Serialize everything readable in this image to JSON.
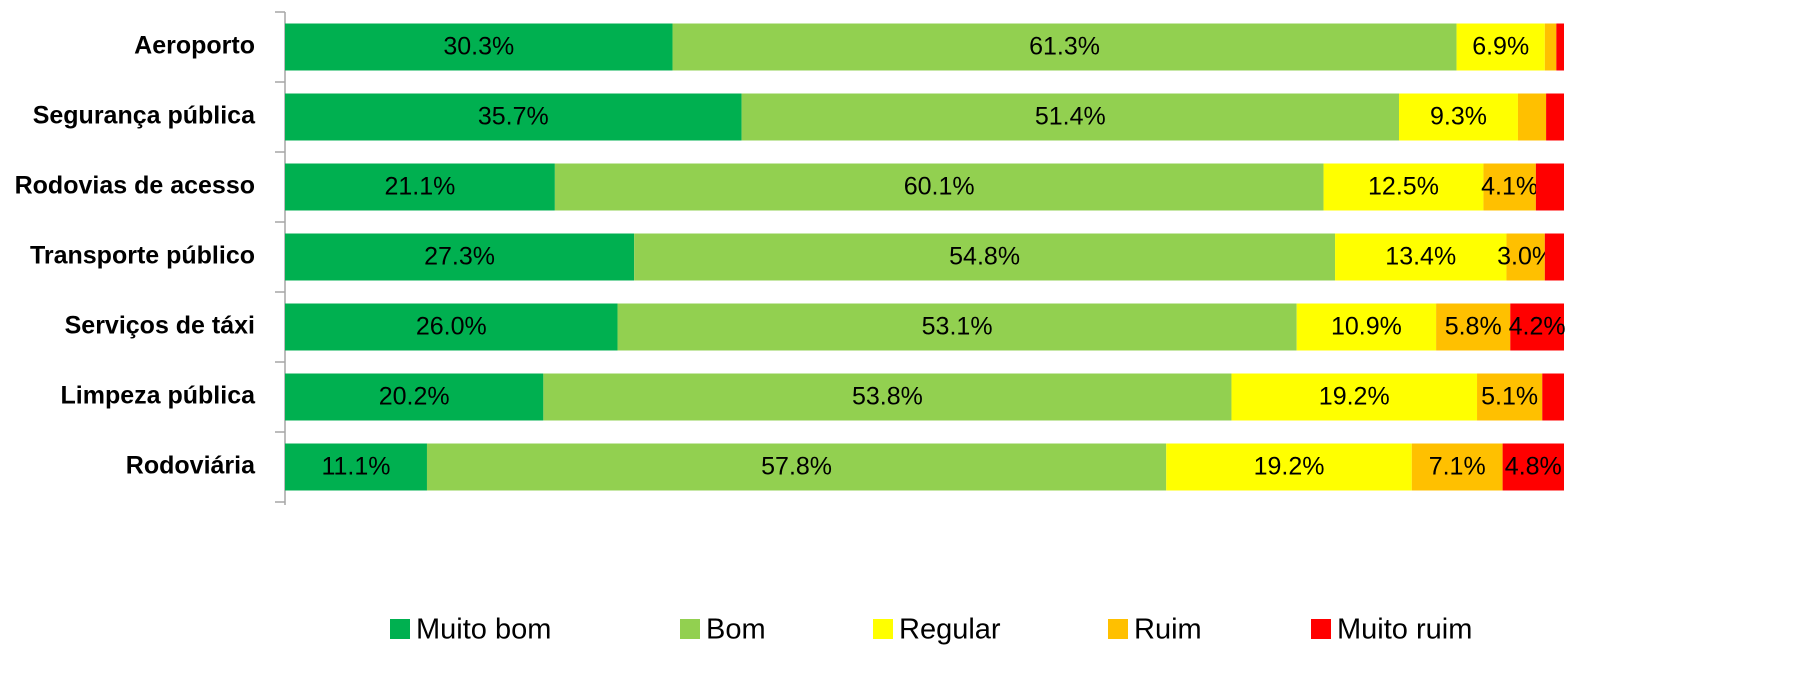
{
  "chart_data": {
    "type": "stacked-bar-horizontal",
    "categories": [
      "Aeroporto",
      "Segurança pública",
      "Rodovias de acesso",
      "Transporte público",
      "Serviços de táxi",
      "Limpeza pública",
      "Rodoviária"
    ],
    "xlim": [
      0,
      100
    ],
    "series": [
      {
        "name": "Muito bom",
        "color": "#00b050",
        "values": [
          30.3,
          35.7,
          21.1,
          27.3,
          26.0,
          20.2,
          11.1
        ],
        "value_labels": [
          "30.3%",
          "35.7%",
          "21.1%",
          "27.3%",
          "26.0%",
          "20.2%",
          "11.1%"
        ]
      },
      {
        "name": "Bom",
        "color": "#92d050",
        "values": [
          61.3,
          51.4,
          60.1,
          54.8,
          53.1,
          53.8,
          57.8
        ],
        "value_labels": [
          "61.3%",
          "51.4%",
          "60.1%",
          "54.8%",
          "53.1%",
          "53.8%",
          "57.8%"
        ]
      },
      {
        "name": "Regular",
        "color": "#ffff00",
        "values": [
          6.9,
          9.3,
          12.5,
          13.4,
          10.9,
          19.2,
          19.2
        ],
        "value_labels": [
          "6.9%",
          "9.3%",
          "12.5%",
          "13.4%",
          "10.9%",
          "19.2%",
          "19.2%"
        ]
      },
      {
        "name": "Ruim",
        "color": "#ffc000",
        "values": [
          0.9,
          2.2,
          4.1,
          3.0,
          5.8,
          5.1,
          7.1
        ],
        "value_labels": [
          null,
          null,
          "4.1%",
          "3.0%",
          "5.8%",
          "5.1%",
          "7.1%"
        ]
      },
      {
        "name": "Muito ruim",
        "color": "#ff0000",
        "values": [
          0.6,
          1.4,
          2.2,
          1.5,
          4.2,
          1.7,
          4.8
        ],
        "value_labels": [
          null,
          null,
          null,
          null,
          "4.2%",
          null,
          "4.8%"
        ]
      }
    ],
    "legend": "bottom"
  }
}
